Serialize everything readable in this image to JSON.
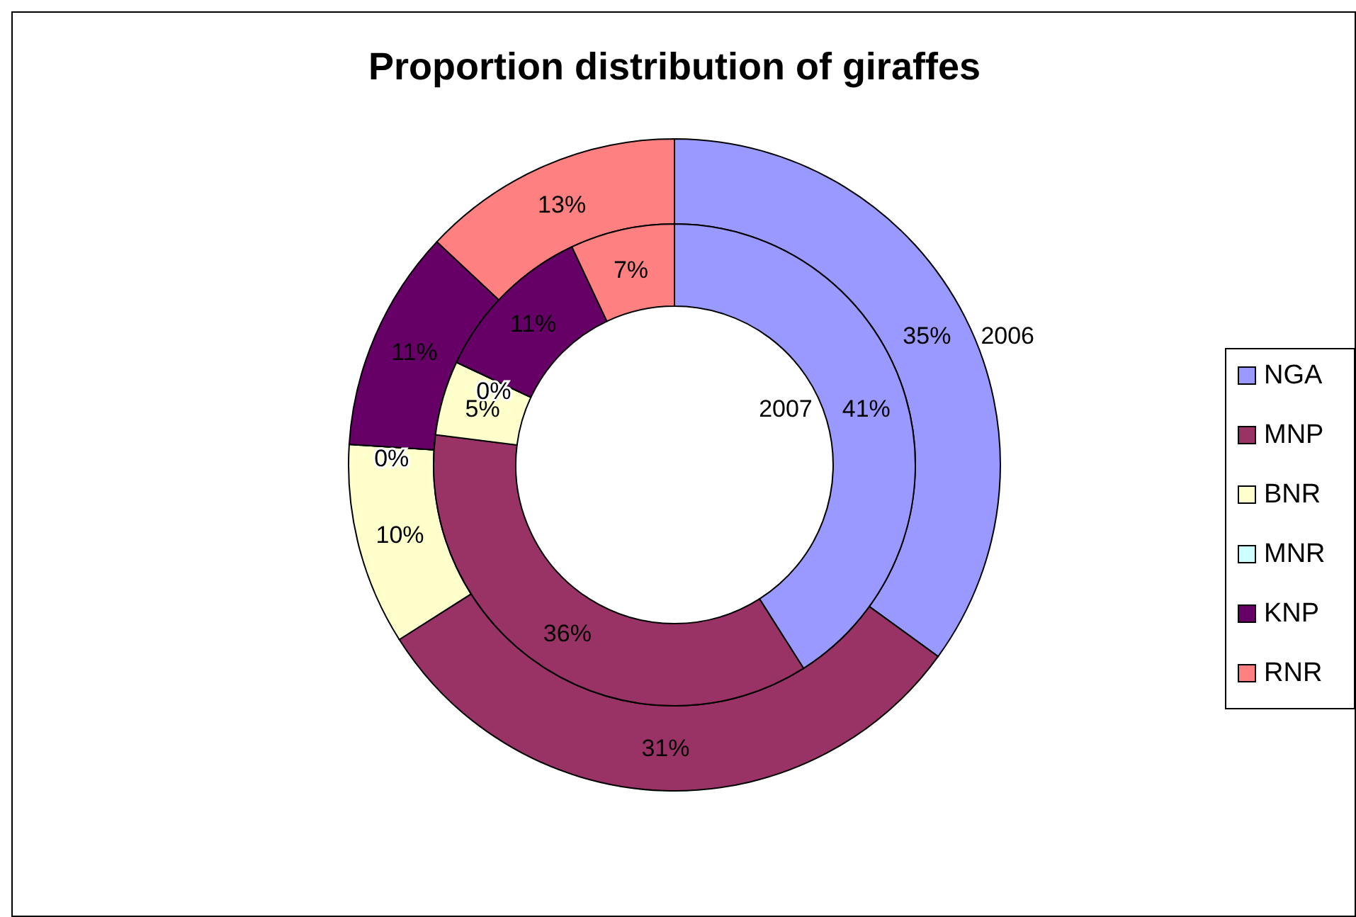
{
  "chart_data": {
    "type": "donut",
    "title": "Proportion distribution of giraffes",
    "categories": [
      "NGA",
      "MNP",
      "BNR",
      "MNR",
      "KNP",
      "RNR"
    ],
    "colors": [
      "#9999ff",
      "#993366",
      "#ffffcc",
      "#ccffff",
      "#660066",
      "#ff8080"
    ],
    "series": [
      {
        "name": "2006",
        "values": [
          35,
          31,
          10,
          0,
          11,
          13
        ],
        "value_labels": [
          "35%",
          "31%",
          "10%",
          "0%",
          "11%",
          "13%"
        ]
      },
      {
        "name": "2007",
        "values": [
          41,
          36,
          5,
          0,
          11,
          7
        ],
        "value_labels": [
          "41%",
          "36%",
          "5%",
          "0%",
          "11%",
          "7%"
        ]
      }
    ],
    "legend": "right"
  }
}
